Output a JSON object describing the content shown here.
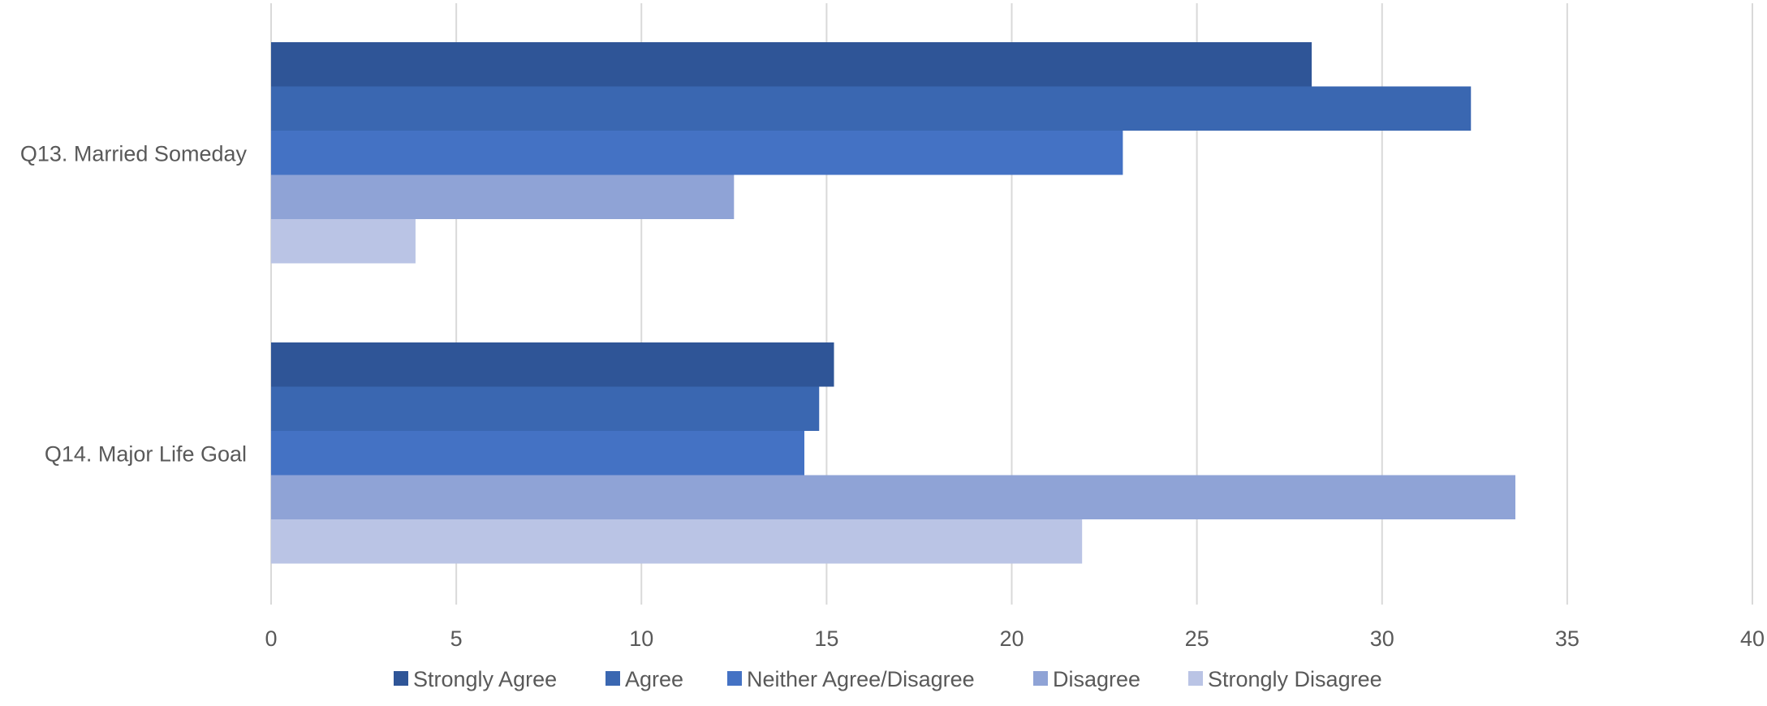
{
  "chart_data": {
    "type": "bar",
    "orientation": "horizontal",
    "categories": [
      "Q13. Married Someday",
      "Q14. Major Life Goal"
    ],
    "series": [
      {
        "name": "Strongly Agree",
        "values": [
          28.1,
          15.2
        ],
        "color": "#2F5597"
      },
      {
        "name": "Agree",
        "values": [
          32.4,
          14.8
        ],
        "color": "#3A67B1"
      },
      {
        "name": "Neither Agree/Disagree",
        "values": [
          23.0,
          14.4
        ],
        "color": "#4472C4"
      },
      {
        "name": "Disagree",
        "values": [
          12.5,
          33.6
        ],
        "color": "#8FA3D6"
      },
      {
        "name": "Strongly Disagree",
        "values": [
          3.9,
          21.9
        ],
        "color": "#BAC4E5"
      }
    ],
    "xlim": [
      0,
      40
    ],
    "xticks": [
      0,
      5,
      10,
      15,
      20,
      25,
      30,
      35,
      40
    ],
    "grid": true,
    "legend_position": "bottom",
    "title": "",
    "xlabel": "",
    "ylabel": ""
  }
}
